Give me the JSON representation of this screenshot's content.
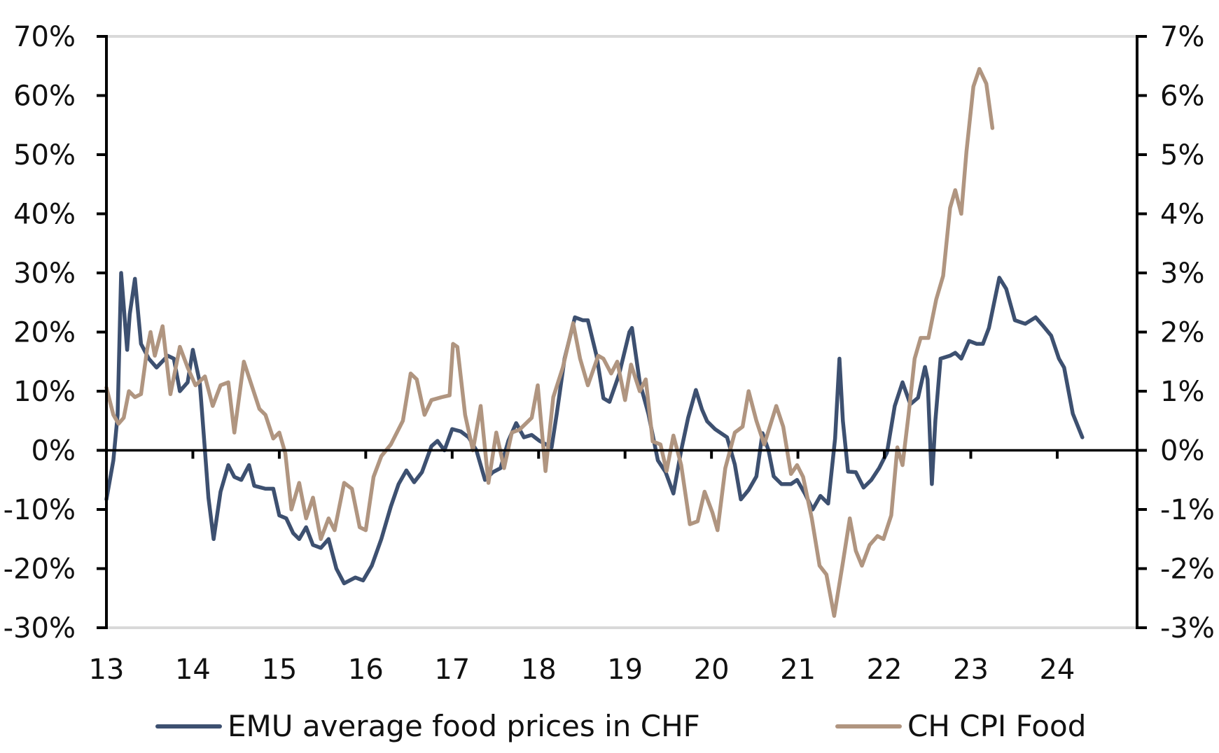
{
  "chart_data": {
    "type": "line",
    "title": "",
    "xlabel": "",
    "ylabel": "",
    "x_ticks": [
      "13",
      "14",
      "15",
      "16",
      "17",
      "18",
      "19",
      "20",
      "21",
      "22",
      "23",
      "24"
    ],
    "x_range": [
      13,
      25
    ],
    "y_left": {
      "range": [
        -30,
        70
      ],
      "ticks": [
        "70%",
        "60%",
        "50%",
        "40%",
        "30%",
        "20%",
        "10%",
        "0%",
        "-10%",
        "-20%",
        "-30%"
      ]
    },
    "y_right": {
      "range": [
        -3,
        7
      ],
      "ticks": [
        "7%",
        "6%",
        "5%",
        "4%",
        "3%",
        "2%",
        "1%",
        "0%",
        "-1%",
        "-2%",
        "-3%"
      ]
    },
    "grid": false,
    "legend_position": "bottom",
    "series": [
      {
        "name": "EMU average food prices in CHF",
        "axis": "left",
        "color": "#3d5070",
        "x": [
          13.0,
          13.08,
          13.13,
          13.17,
          13.24,
          13.27,
          13.33,
          13.4,
          13.49,
          13.58,
          13.71,
          13.78,
          13.85,
          13.94,
          14.0,
          14.08,
          14.14,
          14.18,
          14.24,
          14.32,
          14.41,
          14.48,
          14.56,
          14.65,
          14.71,
          14.84,
          14.93,
          15.0,
          15.08,
          15.16,
          15.23,
          15.31,
          15.39,
          15.48,
          15.57,
          15.66,
          15.75,
          15.88,
          15.97,
          16.07,
          16.18,
          16.29,
          16.38,
          16.47,
          16.56,
          16.65,
          16.76,
          16.83,
          16.91,
          17.0,
          17.1,
          17.19,
          17.28,
          17.38,
          17.47,
          17.56,
          17.65,
          17.74,
          17.83,
          17.92,
          18.01,
          18.15,
          18.21,
          18.3,
          18.42,
          18.51,
          18.57,
          18.67,
          18.75,
          18.82,
          18.93,
          19.05,
          19.08,
          19.17,
          19.27,
          19.38,
          19.47,
          19.56,
          19.65,
          19.73,
          19.82,
          19.89,
          19.95,
          20.04,
          20.18,
          20.27,
          20.34,
          20.43,
          20.52,
          20.59,
          20.66,
          20.72,
          20.81,
          20.92,
          20.99,
          21.08,
          21.17,
          21.26,
          21.35,
          21.43,
          21.48,
          21.52,
          21.58,
          21.67,
          21.76,
          21.85,
          21.94,
          22.03,
          22.12,
          22.21,
          22.3,
          22.39,
          22.47,
          22.5,
          22.55,
          22.59,
          22.65,
          22.76,
          22.82,
          22.89,
          22.98,
          23.07,
          23.14,
          23.21,
          23.33,
          23.41,
          23.51,
          23.63,
          23.75,
          23.84,
          23.93,
          24.02,
          24.08,
          24.18,
          24.29
        ],
        "y": [
          -8.3,
          -1.7,
          6,
          30,
          17,
          23,
          29,
          18,
          15.5,
          14,
          16,
          15.5,
          10,
          11.5,
          17,
          11.5,
          0,
          -8,
          -15,
          -7,
          -2.5,
          -4.5,
          -5,
          -2.5,
          -6,
          -6.5,
          -6.5,
          -11,
          -11.5,
          -14,
          -15,
          -13,
          -16,
          -16.5,
          -15,
          -20,
          -22.5,
          -21.5,
          -22,
          -19.5,
          -15,
          -9.5,
          -5.7,
          -3.4,
          -5.4,
          -3.7,
          0.7,
          1.6,
          0,
          3.6,
          3.2,
          2.2,
          0,
          -5,
          -3.7,
          -3,
          1.6,
          4.6,
          2.2,
          2.6,
          1.6,
          0.5,
          6.2,
          15.5,
          22.5,
          22,
          22,
          16,
          8.8,
          8.2,
          12.8,
          20,
          20.7,
          11.5,
          6.2,
          -1.7,
          -3.7,
          -7.3,
          0,
          5.5,
          10.2,
          6.9,
          4.9,
          3.6,
          2.2,
          -2.4,
          -8.3,
          -6.7,
          -4.4,
          2.9,
          0,
          -4.4,
          -5.7,
          -5.7,
          -5,
          -7.3,
          -10,
          -7.7,
          -9,
          2,
          15.5,
          5,
          -3.6,
          -3.7,
          -6.3,
          -5,
          -3,
          -0.4,
          7.5,
          11.5,
          7.8,
          8.9,
          14.1,
          12,
          -5.7,
          5,
          15.5,
          16,
          16.5,
          15.5,
          18.5,
          18,
          18,
          20.7,
          29.2,
          27.3,
          22,
          21.4,
          22.5,
          21,
          19.4,
          15.5,
          14,
          6.2,
          2.2
        ]
      },
      {
        "name": "CH CPI Food",
        "axis": "right",
        "color": "#b09580",
        "x": [
          13.0,
          13.08,
          13.14,
          13.2,
          13.26,
          13.33,
          13.4,
          13.47,
          13.51,
          13.56,
          13.65,
          13.74,
          13.85,
          13.94,
          14.03,
          14.14,
          14.23,
          14.32,
          14.41,
          14.48,
          14.59,
          14.68,
          14.77,
          14.84,
          14.93,
          15.0,
          15.07,
          15.14,
          15.23,
          15.31,
          15.39,
          15.48,
          15.57,
          15.64,
          15.75,
          15.84,
          15.93,
          16.0,
          16.09,
          16.18,
          16.29,
          16.43,
          16.52,
          16.59,
          16.68,
          16.76,
          16.88,
          16.97,
          17.01,
          17.06,
          17.15,
          17.24,
          17.33,
          17.42,
          17.51,
          17.6,
          17.69,
          17.78,
          17.92,
          17.99,
          18.08,
          18.17,
          18.28,
          18.4,
          18.48,
          18.57,
          18.69,
          18.75,
          18.84,
          18.91,
          19.0,
          19.07,
          19.17,
          19.24,
          19.32,
          19.41,
          19.48,
          19.56,
          19.65,
          19.75,
          19.84,
          19.92,
          20.01,
          20.07,
          20.16,
          20.27,
          20.36,
          20.43,
          20.52,
          20.61,
          20.75,
          20.83,
          20.92,
          20.99,
          21.06,
          21.16,
          21.25,
          21.33,
          21.42,
          21.52,
          21.6,
          21.67,
          21.74,
          21.83,
          21.92,
          21.99,
          22.08,
          22.15,
          22.21,
          22.28,
          22.35,
          22.42,
          22.51,
          22.6,
          22.68,
          22.76,
          22.82,
          22.89,
          22.95,
          23.03,
          23.1,
          23.18,
          23.25
        ],
        "y": [
          1.06,
          0.6,
          0.45,
          0.55,
          1.0,
          0.9,
          0.95,
          1.7,
          2.0,
          1.6,
          2.1,
          0.95,
          1.75,
          1.4,
          1.1,
          1.25,
          0.75,
          1.1,
          1.15,
          0.3,
          1.5,
          1.1,
          0.7,
          0.6,
          0.2,
          0.3,
          -0.05,
          -1.0,
          -0.55,
          -1.15,
          -0.8,
          -1.5,
          -1.15,
          -1.35,
          -0.55,
          -0.65,
          -1.3,
          -1.35,
          -0.45,
          -0.1,
          0.1,
          0.5,
          1.3,
          1.2,
          0.6,
          0.85,
          0.9,
          0.93,
          1.8,
          1.75,
          0.6,
          0.0,
          0.75,
          -0.55,
          0.3,
          -0.3,
          0.3,
          0.35,
          0.55,
          1.1,
          -0.35,
          0.9,
          1.4,
          2.15,
          1.55,
          1.1,
          1.6,
          1.55,
          1.3,
          1.5,
          0.85,
          1.45,
          1.0,
          1.2,
          0.15,
          0.1,
          -0.35,
          0.25,
          -0.25,
          -1.25,
          -1.2,
          -0.7,
          -1.05,
          -1.35,
          -0.3,
          0.3,
          0.4,
          1.0,
          0.5,
          0.1,
          0.75,
          0.4,
          -0.4,
          -0.25,
          -0.45,
          -1.15,
          -1.95,
          -2.1,
          -2.8,
          -1.9,
          -1.15,
          -1.7,
          -1.95,
          -1.6,
          -1.45,
          -1.5,
          -1.1,
          0.05,
          -0.25,
          0.6,
          1.55,
          1.9,
          1.9,
          2.55,
          2.95,
          4.1,
          4.4,
          4.0,
          5.05,
          6.15,
          6.45,
          6.2,
          5.45
        ]
      }
    ]
  }
}
